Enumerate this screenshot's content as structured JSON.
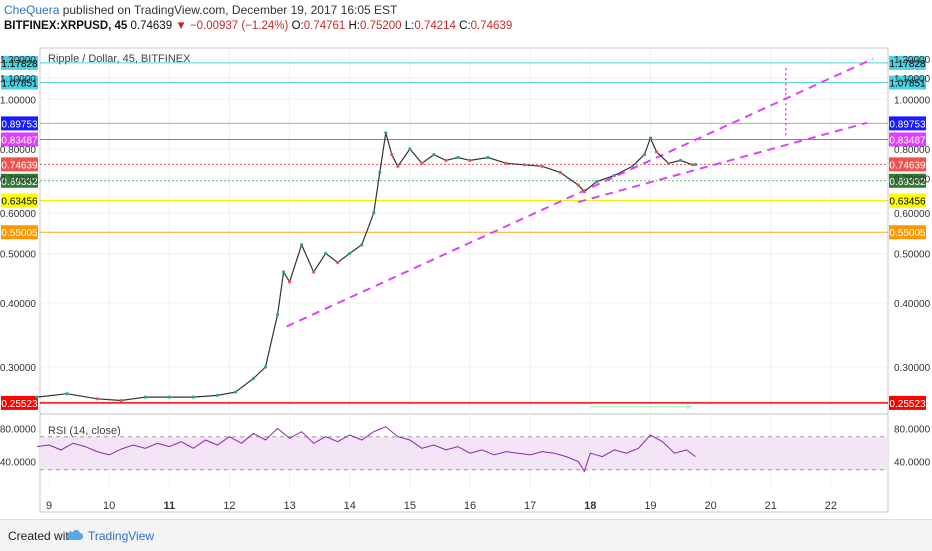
{
  "header": {
    "author": "CheQuera",
    "published_text": " published on TradingView.com, December 19, 2017 16:05 EST",
    "symbol": "BITFINEX:XRPUSD, 45",
    "last": "0.74639",
    "change": "▼ −0.00937 (−1.24%)",
    "o_label": "O:",
    "o_value": "0.74761",
    "h_label": "H:",
    "h_value": "0.75200",
    "l_label": "L:",
    "l_value": "0.74214",
    "c_label": "C:",
    "c_value": "0.74639"
  },
  "chart_data": {
    "type": "line",
    "title": "Ripple / Dollar, 45, BITFINEX",
    "scale": "log",
    "ylim": [
      0.245,
      1.26
    ],
    "xlabel": "",
    "ylabel": "",
    "x_ticks": [
      "9",
      "10",
      "11",
      "12",
      "13",
      "14",
      "15",
      "16",
      "17",
      "18",
      "19",
      "20",
      "21",
      "22"
    ],
    "x_ticks_bold": [
      "11",
      "18"
    ],
    "y_ticks": [
      "1.20000",
      "1.10000",
      "1.00000",
      "0.80000",
      "0.70000",
      "0.60000",
      "0.50000",
      "0.40000",
      "0.30000"
    ],
    "y_tick_values": [
      1.2,
      1.1,
      1.0,
      0.8,
      0.7,
      0.6,
      0.5,
      0.4,
      0.3
    ],
    "price_series": {
      "name": "",
      "x": [
        8.8,
        9.3,
        9.8,
        10.2,
        10.6,
        11.0,
        11.4,
        11.8,
        12.1,
        12.4,
        12.6,
        12.8,
        12.9,
        13.0,
        13.2,
        13.4,
        13.6,
        13.8,
        14.0,
        14.2,
        14.4,
        14.5,
        14.6,
        14.7,
        14.8,
        15.0,
        15.2,
        15.4,
        15.6,
        15.8,
        16.0,
        16.3,
        16.6,
        16.9,
        17.2,
        17.5,
        17.8,
        17.9,
        18.1,
        18.4,
        18.7,
        18.9,
        19.0,
        19.1,
        19.3,
        19.5,
        19.7,
        19.75
      ],
      "values": [
        0.262,
        0.266,
        0.26,
        0.258,
        0.262,
        0.262,
        0.262,
        0.264,
        0.268,
        0.285,
        0.3,
        0.38,
        0.46,
        0.44,
        0.52,
        0.46,
        0.5,
        0.48,
        0.5,
        0.52,
        0.6,
        0.72,
        0.86,
        0.78,
        0.74,
        0.8,
        0.75,
        0.78,
        0.76,
        0.77,
        0.76,
        0.77,
        0.75,
        0.745,
        0.74,
        0.72,
        0.68,
        0.66,
        0.69,
        0.71,
        0.74,
        0.78,
        0.84,
        0.79,
        0.75,
        0.76,
        0.745,
        0.746
      ]
    },
    "horizontal_levels": [
      {
        "label": "1.17828",
        "value": 1.17828,
        "color": "#4dd0e1",
        "bg": "#4dd0e1",
        "fg": "#000000"
      },
      {
        "label": "1.07851",
        "value": 1.07851,
        "color": "#4dd0e1",
        "bg": "#4dd0e1",
        "fg": "#000000"
      },
      {
        "label": "0.89753",
        "value": 0.89753,
        "color": "#9fa8da",
        "bg": "#1a1aff",
        "fg": "#ffffff"
      },
      {
        "label": "0.83487",
        "value": 0.83487,
        "color": "#e040fb",
        "bg": "#e040fb",
        "fg": "#ffffff"
      },
      {
        "label": "0.74639",
        "value": 0.74639,
        "color": "#ef5350",
        "bg": "#ef5350",
        "fg": "#ffffff"
      },
      {
        "label": "0.69332",
        "value": 0.69332,
        "color": "#66bb6a",
        "bg": "#2e7d32",
        "fg": "#ffffff"
      },
      {
        "label": "0.63456",
        "value": 0.63456,
        "color": "#eeee00",
        "bg": "#ffff00",
        "fg": "#000000"
      },
      {
        "label": "0.55005",
        "value": 0.55005,
        "color": "#ffa726",
        "bg": "#ff9800",
        "fg": "#ffffff"
      },
      {
        "label": "0.25523",
        "value": 0.25523,
        "color": "#ff0000",
        "bg": "#ff0000",
        "fg": "#ffffff"
      }
    ],
    "trendlines": [
      {
        "x1": 12.95,
        "y1": 0.36,
        "x2": 22.7,
        "y2": 1.2,
        "color": "#e040fb",
        "dash": true
      },
      {
        "x1": 17.8,
        "y1": 0.63,
        "x2": 22.6,
        "y2": 0.9,
        "color": "#e040fb",
        "dash": true
      }
    ],
    "projection": {
      "x": 21.25,
      "y1": 1.15,
      "y2": 0.84,
      "color": "#e040fb"
    },
    "volume_arrow": {
      "x1": 18.0,
      "x2": 19.7,
      "y": 0.251,
      "color": "#b9f6ca"
    },
    "rsi": {
      "title": "RSI (14, close)",
      "ylim": [
        8,
        95
      ],
      "upper": 70,
      "lower": 30,
      "y_ticks": [
        "80.0000",
        "40.0000"
      ],
      "y_tick_values": [
        80,
        40
      ],
      "x": [
        8.8,
        9.0,
        9.2,
        9.4,
        9.6,
        9.8,
        10.0,
        10.2,
        10.4,
        10.6,
        10.8,
        11.0,
        11.2,
        11.4,
        11.6,
        11.8,
        12.0,
        12.2,
        12.4,
        12.6,
        12.8,
        13.0,
        13.2,
        13.4,
        13.6,
        13.8,
        14.0,
        14.2,
        14.4,
        14.6,
        14.8,
        15.0,
        15.2,
        15.4,
        15.6,
        15.8,
        16.0,
        16.2,
        16.4,
        16.6,
        16.8,
        17.0,
        17.2,
        17.4,
        17.6,
        17.8,
        17.9,
        18.0,
        18.2,
        18.4,
        18.6,
        18.8,
        19.0,
        19.2,
        19.4,
        19.6,
        19.75
      ],
      "values": [
        58,
        60,
        54,
        62,
        58,
        52,
        48,
        55,
        60,
        56,
        62,
        58,
        64,
        56,
        66,
        60,
        70,
        62,
        74,
        66,
        80,
        68,
        76,
        62,
        70,
        64,
        72,
        66,
        76,
        82,
        70,
        66,
        56,
        60,
        54,
        58,
        50,
        54,
        48,
        52,
        50,
        48,
        52,
        50,
        46,
        40,
        28,
        50,
        46,
        54,
        50,
        56,
        72,
        64,
        50,
        54,
        46
      ]
    }
  },
  "footer": {
    "created": "Created with",
    "brand": "TradingView"
  }
}
